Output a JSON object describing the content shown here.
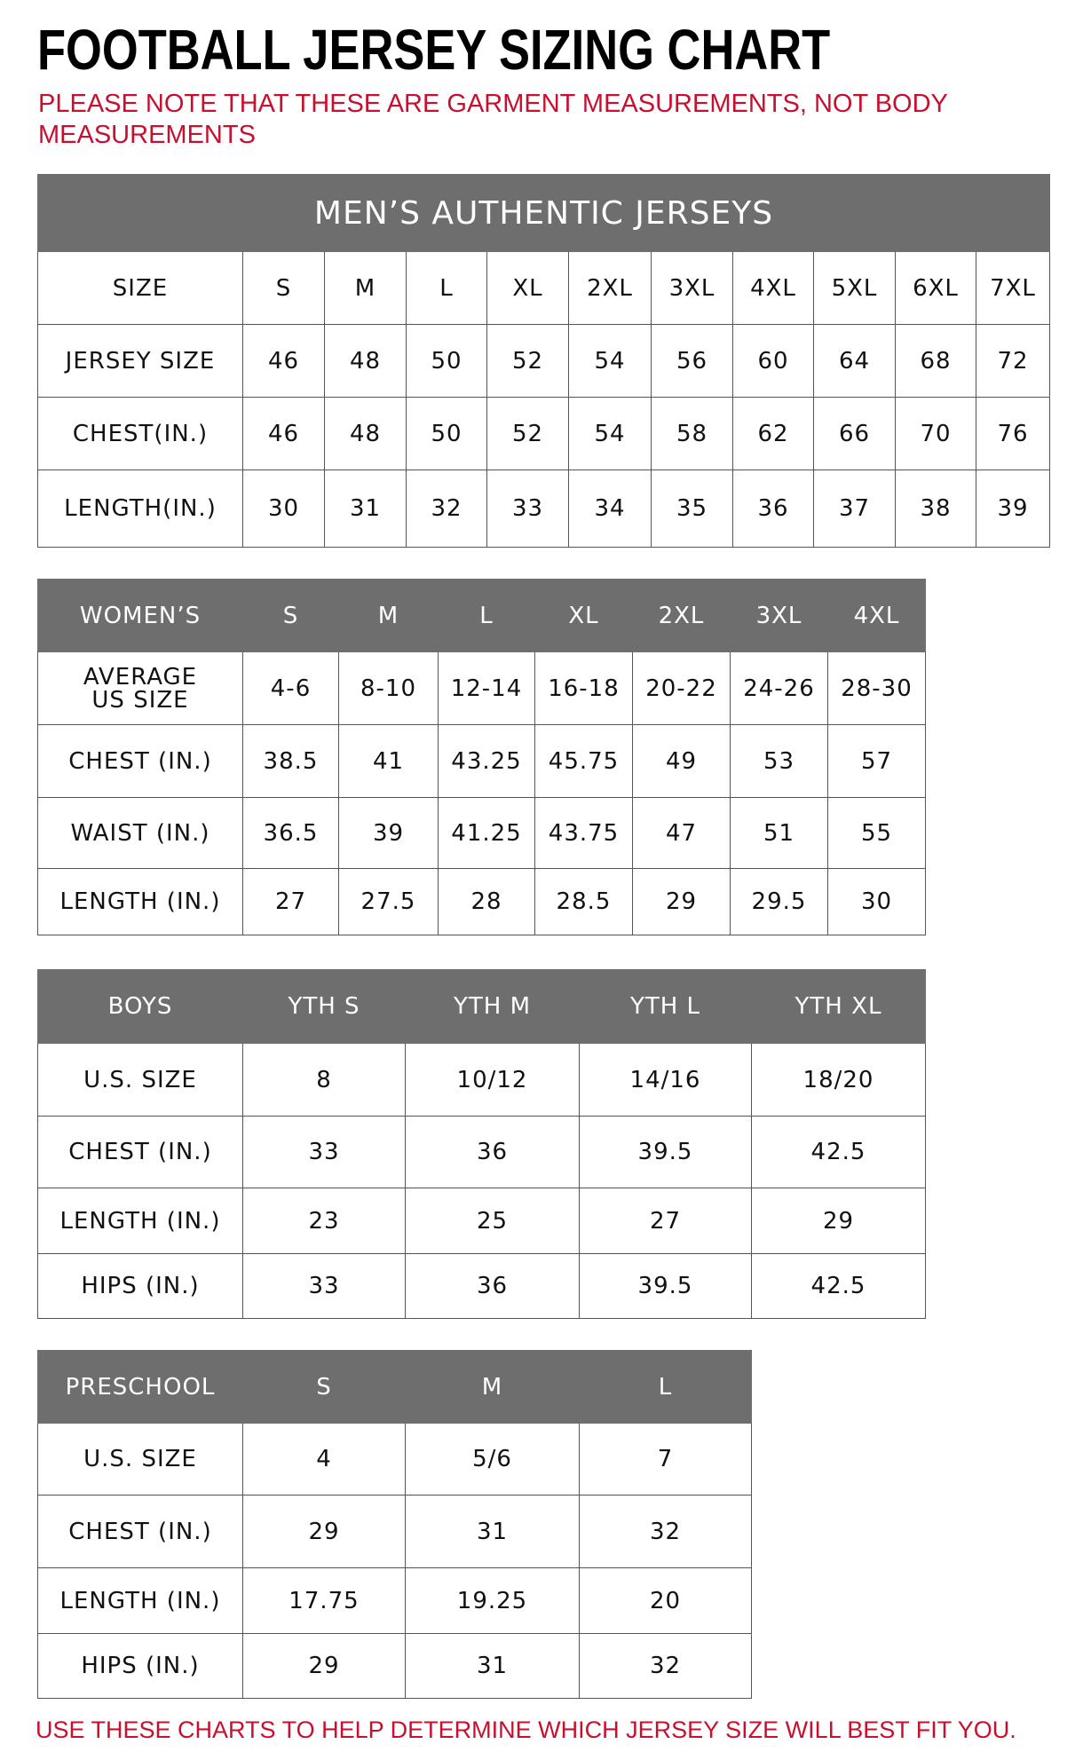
{
  "title": "FOOTBALL JERSEY SIZING CHART",
  "note": "PLEASE NOTE THAT THESE ARE GARMENT MEASUREMENTS, NOT BODY MEASUREMENTS",
  "footer": "USE THESE CHARTS TO HELP DETERMINE WHICH JERSEY SIZE WILL BEST FIT YOU.",
  "colors": {
    "header_bg": "#6e6e6e",
    "note_red": "#c8102e"
  },
  "tables": [
    {
      "title": "MEN’S AUTHENTIC JERSEYS",
      "rows": [
        [
          "SIZE",
          "S",
          "M",
          "L",
          "XL",
          "2XL",
          "3XL",
          "4XL",
          "5XL",
          "6XL",
          "7XL"
        ],
        [
          "JERSEY SIZE",
          "46",
          "48",
          "50",
          "52",
          "54",
          "56",
          "60",
          "64",
          "68",
          "72"
        ],
        [
          "CHEST(IN.)",
          "46",
          "48",
          "50",
          "52",
          "54",
          "58",
          "62",
          "66",
          "70",
          "76"
        ],
        [
          "LENGTH(IN.)",
          "30",
          "31",
          "32",
          "33",
          "34",
          "35",
          "36",
          "37",
          "38",
          "39"
        ]
      ]
    },
    {
      "rows": [
        [
          "WOMEN’S",
          "S",
          "M",
          "L",
          "XL",
          "2XL",
          "3XL",
          "4XL"
        ],
        [
          "AVERAGE US SIZE",
          "4-6",
          "8-10",
          "12-14",
          "16-18",
          "20-22",
          "24-26",
          "28-30"
        ],
        [
          "CHEST (IN.)",
          "38.5",
          "41",
          "43.25",
          "45.75",
          "49",
          "53",
          "57"
        ],
        [
          "WAIST (IN.)",
          "36.5",
          "39",
          "41.25",
          "43.75",
          "47",
          "51",
          "55"
        ],
        [
          "LENGTH (IN.)",
          "27",
          "27.5",
          "28",
          "28.5",
          "29",
          "29.5",
          "30"
        ]
      ]
    },
    {
      "rows": [
        [
          "BOYS",
          "YTH S",
          "YTH M",
          "YTH L",
          "YTH XL"
        ],
        [
          "U.S. SIZE",
          "8",
          "10/12",
          "14/16",
          "18/20"
        ],
        [
          "CHEST (IN.)",
          "33",
          "36",
          "39.5",
          "42.5"
        ],
        [
          "LENGTH (IN.)",
          "23",
          "25",
          "27",
          "29"
        ],
        [
          "HIPS (IN.)",
          "33",
          "36",
          "39.5",
          "42.5"
        ]
      ]
    },
    {
      "rows": [
        [
          "PRESCHOOL",
          "S",
          "M",
          "L"
        ],
        [
          "U.S. SIZE",
          "4",
          "5/6",
          "7"
        ],
        [
          "CHEST (IN.)",
          "29",
          "31",
          "32"
        ],
        [
          "LENGTH (IN.)",
          "17.75",
          "19.25",
          "20"
        ],
        [
          "HIPS (IN.)",
          "29",
          "31",
          "32"
        ]
      ]
    }
  ]
}
